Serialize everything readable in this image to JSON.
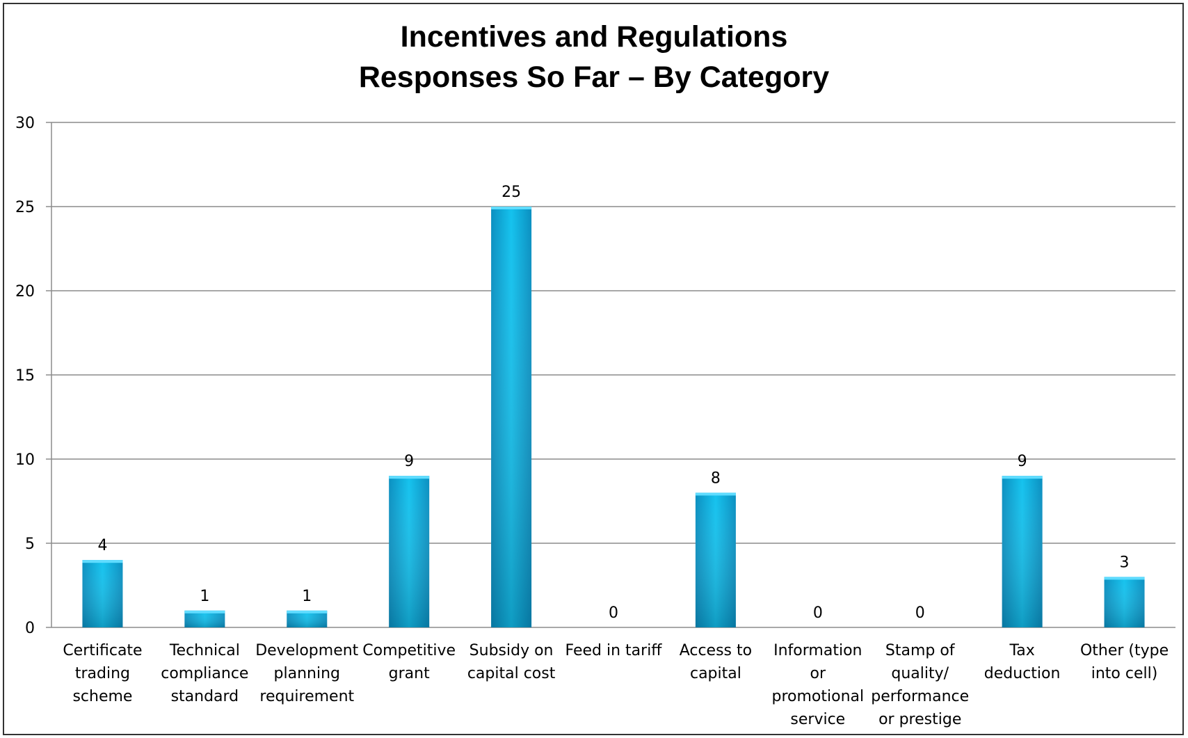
{
  "chart_data": {
    "type": "bar",
    "title_lines": [
      "Incentives and Regulations",
      "Responses So Far – By Category"
    ],
    "xlabel": "",
    "ylabel": "",
    "ylim": [
      0,
      30
    ],
    "yticks": [
      "0",
      "5",
      "10",
      "15",
      "20",
      "25",
      "30"
    ],
    "grid": true,
    "legend": "none",
    "bar_color": "#0aa6d6",
    "categories": [
      [
        "Certificate",
        "trading",
        "scheme"
      ],
      [
        "Technical",
        "compliance",
        "standard"
      ],
      [
        "Development",
        "planning",
        "requirement"
      ],
      [
        "Competitive",
        "grant"
      ],
      [
        "Subsidy on",
        "capital cost"
      ],
      [
        "Feed in tariff"
      ],
      [
        "Access to",
        "capital"
      ],
      [
        "Information",
        "or",
        "promotional",
        "service"
      ],
      [
        "Stamp of",
        "quality/",
        "performance",
        "or prestige"
      ],
      [
        "Tax",
        "deduction"
      ],
      [
        "Other (type",
        "into cell)"
      ]
    ],
    "values": [
      4,
      1,
      1,
      9,
      25,
      0,
      8,
      0,
      0,
      9,
      3
    ],
    "value_labels": [
      "4",
      "1",
      "1",
      "9",
      "25",
      "0",
      "8",
      "0",
      "0",
      "9",
      "3"
    ]
  }
}
